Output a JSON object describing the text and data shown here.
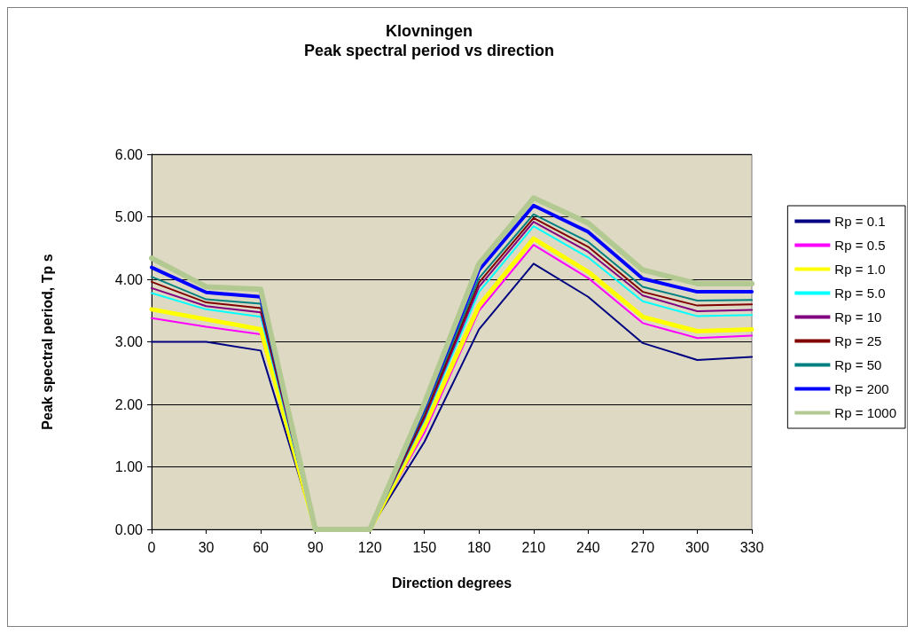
{
  "chart_data": {
    "type": "line",
    "title": "Klovningen",
    "subtitle": "Peak spectral period vs direction",
    "xlabel": "Direction degrees",
    "ylabel": "Peak spectral period, Tp s",
    "categories": [
      "0",
      "30",
      "60",
      "90",
      "120",
      "150",
      "180",
      "210",
      "240",
      "270",
      "300",
      "330"
    ],
    "ylim": [
      0,
      6
    ],
    "yticks": [
      {
        "value": 0,
        "label": "0.00"
      },
      {
        "value": 1,
        "label": "1.00"
      },
      {
        "value": 2,
        "label": "2.00"
      },
      {
        "value": 3,
        "label": "3.00"
      },
      {
        "value": 4,
        "label": "4.00"
      },
      {
        "value": 5,
        "label": "5.00"
      },
      {
        "value": 6,
        "label": "6.00"
      }
    ],
    "grid": "y",
    "legend": "right",
    "marker": "none",
    "line_style": "solid",
    "series": [
      {
        "name": "Rp = 0.1",
        "color": "#000080",
        "values": [
          3.0,
          3.0,
          2.86,
          0,
          0,
          1.4,
          3.2,
          4.25,
          3.72,
          2.98,
          2.71,
          2.76
        ]
      },
      {
        "name": "Rp = 0.5",
        "color": "#ff00ff",
        "values": [
          3.38,
          3.24,
          3.12,
          0,
          0,
          1.55,
          3.5,
          4.55,
          4.02,
          3.3,
          3.06,
          3.1
        ]
      },
      {
        "name": "Rp = 1.0",
        "color": "#ffff00",
        "values": [
          3.52,
          3.36,
          3.2,
          0,
          0,
          1.65,
          3.58,
          4.65,
          4.12,
          3.4,
          3.17,
          3.2
        ]
      },
      {
        "name": "Rp = 5.0",
        "color": "#00ffff",
        "values": [
          3.78,
          3.52,
          3.4,
          0,
          0,
          1.75,
          3.8,
          4.85,
          4.35,
          3.65,
          3.41,
          3.43
        ]
      },
      {
        "name": "Rp = 10",
        "color": "#800080",
        "values": [
          3.86,
          3.57,
          3.47,
          0,
          0,
          1.78,
          3.88,
          4.92,
          4.44,
          3.74,
          3.49,
          3.51
        ]
      },
      {
        "name": "Rp = 25",
        "color": "#800000",
        "values": [
          3.96,
          3.63,
          3.54,
          0,
          0,
          1.82,
          3.95,
          4.98,
          4.52,
          3.8,
          3.58,
          3.6
        ]
      },
      {
        "name": "Rp = 50",
        "color": "#008080",
        "values": [
          4.04,
          3.68,
          3.61,
          0,
          0,
          1.88,
          4.02,
          5.04,
          4.6,
          3.88,
          3.66,
          3.67
        ]
      },
      {
        "name": "Rp = 200",
        "color": "#0000ff",
        "values": [
          4.19,
          3.79,
          3.72,
          0,
          0,
          1.95,
          4.15,
          5.18,
          4.76,
          4.01,
          3.8,
          3.8
        ]
      },
      {
        "name": "Rp = 1000",
        "color": "#b3c992",
        "values": [
          4.34,
          3.88,
          3.84,
          0,
          0,
          2.02,
          4.25,
          5.3,
          4.9,
          4.15,
          3.93,
          3.93
        ]
      }
    ]
  }
}
